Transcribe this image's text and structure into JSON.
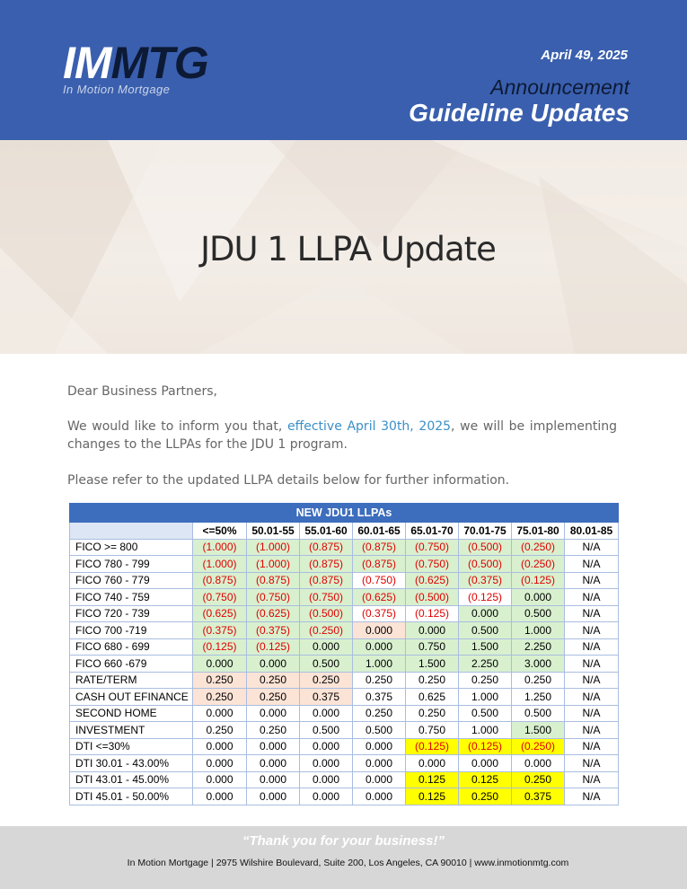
{
  "header": {
    "logo_im": "IM",
    "logo_mtg": "MTG",
    "logo_tagline": "In Motion Mortgage",
    "date": "April 49, 2025",
    "announcement": "Announcement",
    "guideline": "Guideline Updates"
  },
  "hero": {
    "title": "JDU 1 LLPA Update"
  },
  "body": {
    "greeting": "Dear Business Partners,",
    "p2_before": "We would like to inform you that, ",
    "p2_highlight": "effective April 30th, 2025",
    "p2_after": ", we will be implementing changes to the LLPAs for the JDU 1 program.",
    "p3": "Please refer to the updated LLPA details below for further information."
  },
  "table": {
    "title": "NEW JDU1 LLPAs",
    "columns": [
      "<=50%",
      "50.01-55",
      "55.01-60",
      "60.01-65",
      "65.01-70",
      "70.01-75",
      "75.01-80",
      "80.01-85"
    ],
    "rows": [
      {
        "label": "FICO >= 800",
        "cells": [
          [
            "(1.000)",
            "g"
          ],
          [
            "(1.000)",
            "g"
          ],
          [
            "(0.875)",
            "g"
          ],
          [
            "(0.875)",
            "g"
          ],
          [
            "(0.750)",
            "g"
          ],
          [
            "(0.500)",
            "g"
          ],
          [
            "(0.250)",
            "g"
          ],
          [
            "N/A",
            "w"
          ]
        ]
      },
      {
        "label": "FICO 780 - 799",
        "cells": [
          [
            "(1.000)",
            "g"
          ],
          [
            "(1.000)",
            "g"
          ],
          [
            "(0.875)",
            "g"
          ],
          [
            "(0.875)",
            "g"
          ],
          [
            "(0.750)",
            "g"
          ],
          [
            "(0.500)",
            "g"
          ],
          [
            "(0.250)",
            "g"
          ],
          [
            "N/A",
            "w"
          ]
        ]
      },
      {
        "label": "FICO 760 - 779",
        "cells": [
          [
            "(0.875)",
            "g"
          ],
          [
            "(0.875)",
            "g"
          ],
          [
            "(0.875)",
            "g"
          ],
          [
            "(0.750)",
            "w"
          ],
          [
            "(0.625)",
            "g"
          ],
          [
            "(0.375)",
            "g"
          ],
          [
            "(0.125)",
            "g"
          ],
          [
            "N/A",
            "w"
          ]
        ]
      },
      {
        "label": "FICO 740 - 759",
        "cells": [
          [
            "(0.750)",
            "g"
          ],
          [
            "(0.750)",
            "g"
          ],
          [
            "(0.750)",
            "g"
          ],
          [
            "(0.625)",
            "g"
          ],
          [
            "(0.500)",
            "g"
          ],
          [
            "(0.125)",
            "w"
          ],
          [
            "0.000",
            "g"
          ],
          [
            "N/A",
            "w"
          ]
        ]
      },
      {
        "label": "FICO 720 - 739",
        "cells": [
          [
            "(0.625)",
            "g"
          ],
          [
            "(0.625)",
            "g"
          ],
          [
            "(0.500)",
            "g"
          ],
          [
            "(0.375)",
            "w"
          ],
          [
            "(0.125)",
            "w"
          ],
          [
            "0.000",
            "g"
          ],
          [
            "0.500",
            "g"
          ],
          [
            "N/A",
            "w"
          ]
        ]
      },
      {
        "label": "FICO 700 -719",
        "cells": [
          [
            "(0.375)",
            "g"
          ],
          [
            "(0.375)",
            "g"
          ],
          [
            "(0.250)",
            "g"
          ],
          [
            "0.000",
            "p"
          ],
          [
            "0.000",
            "g"
          ],
          [
            "0.500",
            "g"
          ],
          [
            "1.000",
            "g"
          ],
          [
            "N/A",
            "w"
          ]
        ]
      },
      {
        "label": "FICO 680 - 699",
        "cells": [
          [
            "(0.125)",
            "g"
          ],
          [
            "(0.125)",
            "g"
          ],
          [
            "0.000",
            "g"
          ],
          [
            "0.000",
            "g"
          ],
          [
            "0.750",
            "g"
          ],
          [
            "1.500",
            "g"
          ],
          [
            "2.250",
            "g"
          ],
          [
            "N/A",
            "w"
          ]
        ]
      },
      {
        "label": "FICO 660 -679",
        "cells": [
          [
            "0.000",
            "g"
          ],
          [
            "0.000",
            "g"
          ],
          [
            "0.500",
            "g"
          ],
          [
            "1.000",
            "g"
          ],
          [
            "1.500",
            "g"
          ],
          [
            "2.250",
            "g"
          ],
          [
            "3.000",
            "g"
          ],
          [
            "N/A",
            "w"
          ]
        ]
      },
      {
        "label": "RATE/TERM",
        "cells": [
          [
            "0.250",
            "p"
          ],
          [
            "0.250",
            "p"
          ],
          [
            "0.250",
            "p"
          ],
          [
            "0.250",
            "w"
          ],
          [
            "0.250",
            "w"
          ],
          [
            "0.250",
            "w"
          ],
          [
            "0.250",
            "w"
          ],
          [
            "N/A",
            "w"
          ]
        ]
      },
      {
        "label": "CASH OUT EFINANCE",
        "cells": [
          [
            "0.250",
            "p"
          ],
          [
            "0.250",
            "p"
          ],
          [
            "0.375",
            "p"
          ],
          [
            "0.375",
            "w"
          ],
          [
            "0.625",
            "w"
          ],
          [
            "1.000",
            "w"
          ],
          [
            "1.250",
            "w"
          ],
          [
            "N/A",
            "w"
          ]
        ]
      },
      {
        "label": "SECOND HOME",
        "cells": [
          [
            "0.000",
            "w"
          ],
          [
            "0.000",
            "w"
          ],
          [
            "0.000",
            "w"
          ],
          [
            "0.250",
            "w"
          ],
          [
            "0.250",
            "w"
          ],
          [
            "0.500",
            "w"
          ],
          [
            "0.500",
            "w"
          ],
          [
            "N/A",
            "w"
          ]
        ]
      },
      {
        "label": "INVESTMENT",
        "cells": [
          [
            "0.250",
            "w"
          ],
          [
            "0.250",
            "w"
          ],
          [
            "0.500",
            "w"
          ],
          [
            "0.500",
            "w"
          ],
          [
            "0.750",
            "w"
          ],
          [
            "1.000",
            "w"
          ],
          [
            "1.500",
            "g"
          ],
          [
            "N/A",
            "w"
          ]
        ]
      },
      {
        "label": "DTI <=30%",
        "cells": [
          [
            "0.000",
            "w"
          ],
          [
            "0.000",
            "w"
          ],
          [
            "0.000",
            "w"
          ],
          [
            "0.000",
            "w"
          ],
          [
            "(0.125)",
            "y"
          ],
          [
            "(0.125)",
            "y"
          ],
          [
            "(0.250)",
            "y"
          ],
          [
            "N/A",
            "w"
          ]
        ]
      },
      {
        "label": "DTI 30.01 - 43.00%",
        "cells": [
          [
            "0.000",
            "w"
          ],
          [
            "0.000",
            "w"
          ],
          [
            "0.000",
            "w"
          ],
          [
            "0.000",
            "w"
          ],
          [
            "0.000",
            "w"
          ],
          [
            "0.000",
            "w"
          ],
          [
            "0.000",
            "w"
          ],
          [
            "N/A",
            "w"
          ]
        ]
      },
      {
        "label": "DTI 43.01 - 45.00%",
        "cells": [
          [
            "0.000",
            "w"
          ],
          [
            "0.000",
            "w"
          ],
          [
            "0.000",
            "w"
          ],
          [
            "0.000",
            "w"
          ],
          [
            "0.125",
            "y"
          ],
          [
            "0.125",
            "y"
          ],
          [
            "0.250",
            "y"
          ],
          [
            "N/A",
            "w"
          ]
        ]
      },
      {
        "label": "DTI 45.01 - 50.00%",
        "cells": [
          [
            "0.000",
            "w"
          ],
          [
            "0.000",
            "w"
          ],
          [
            "0.000",
            "w"
          ],
          [
            "0.000",
            "w"
          ],
          [
            "0.125",
            "y"
          ],
          [
            "0.250",
            "y"
          ],
          [
            "0.375",
            "y"
          ],
          [
            "N/A",
            "w"
          ]
        ]
      }
    ]
  },
  "footer": {
    "thanks": "“Thank you for your business!”",
    "address": "In Motion Mortgage | 2975 Wilshire Boulevard, Suite 200, Los Angeles, CA 90010 | www.inmotionmtg.com"
  },
  "colors": {
    "header_bg": "#3a5fae",
    "table_title_bg": "#3d6dbd",
    "negative_text": "#e00000",
    "green_cell": "#d9f0cf",
    "peach_cell": "#fbe3d6",
    "yellow_cell": "#ffff00",
    "highlight_text": "#3a8fc8"
  }
}
